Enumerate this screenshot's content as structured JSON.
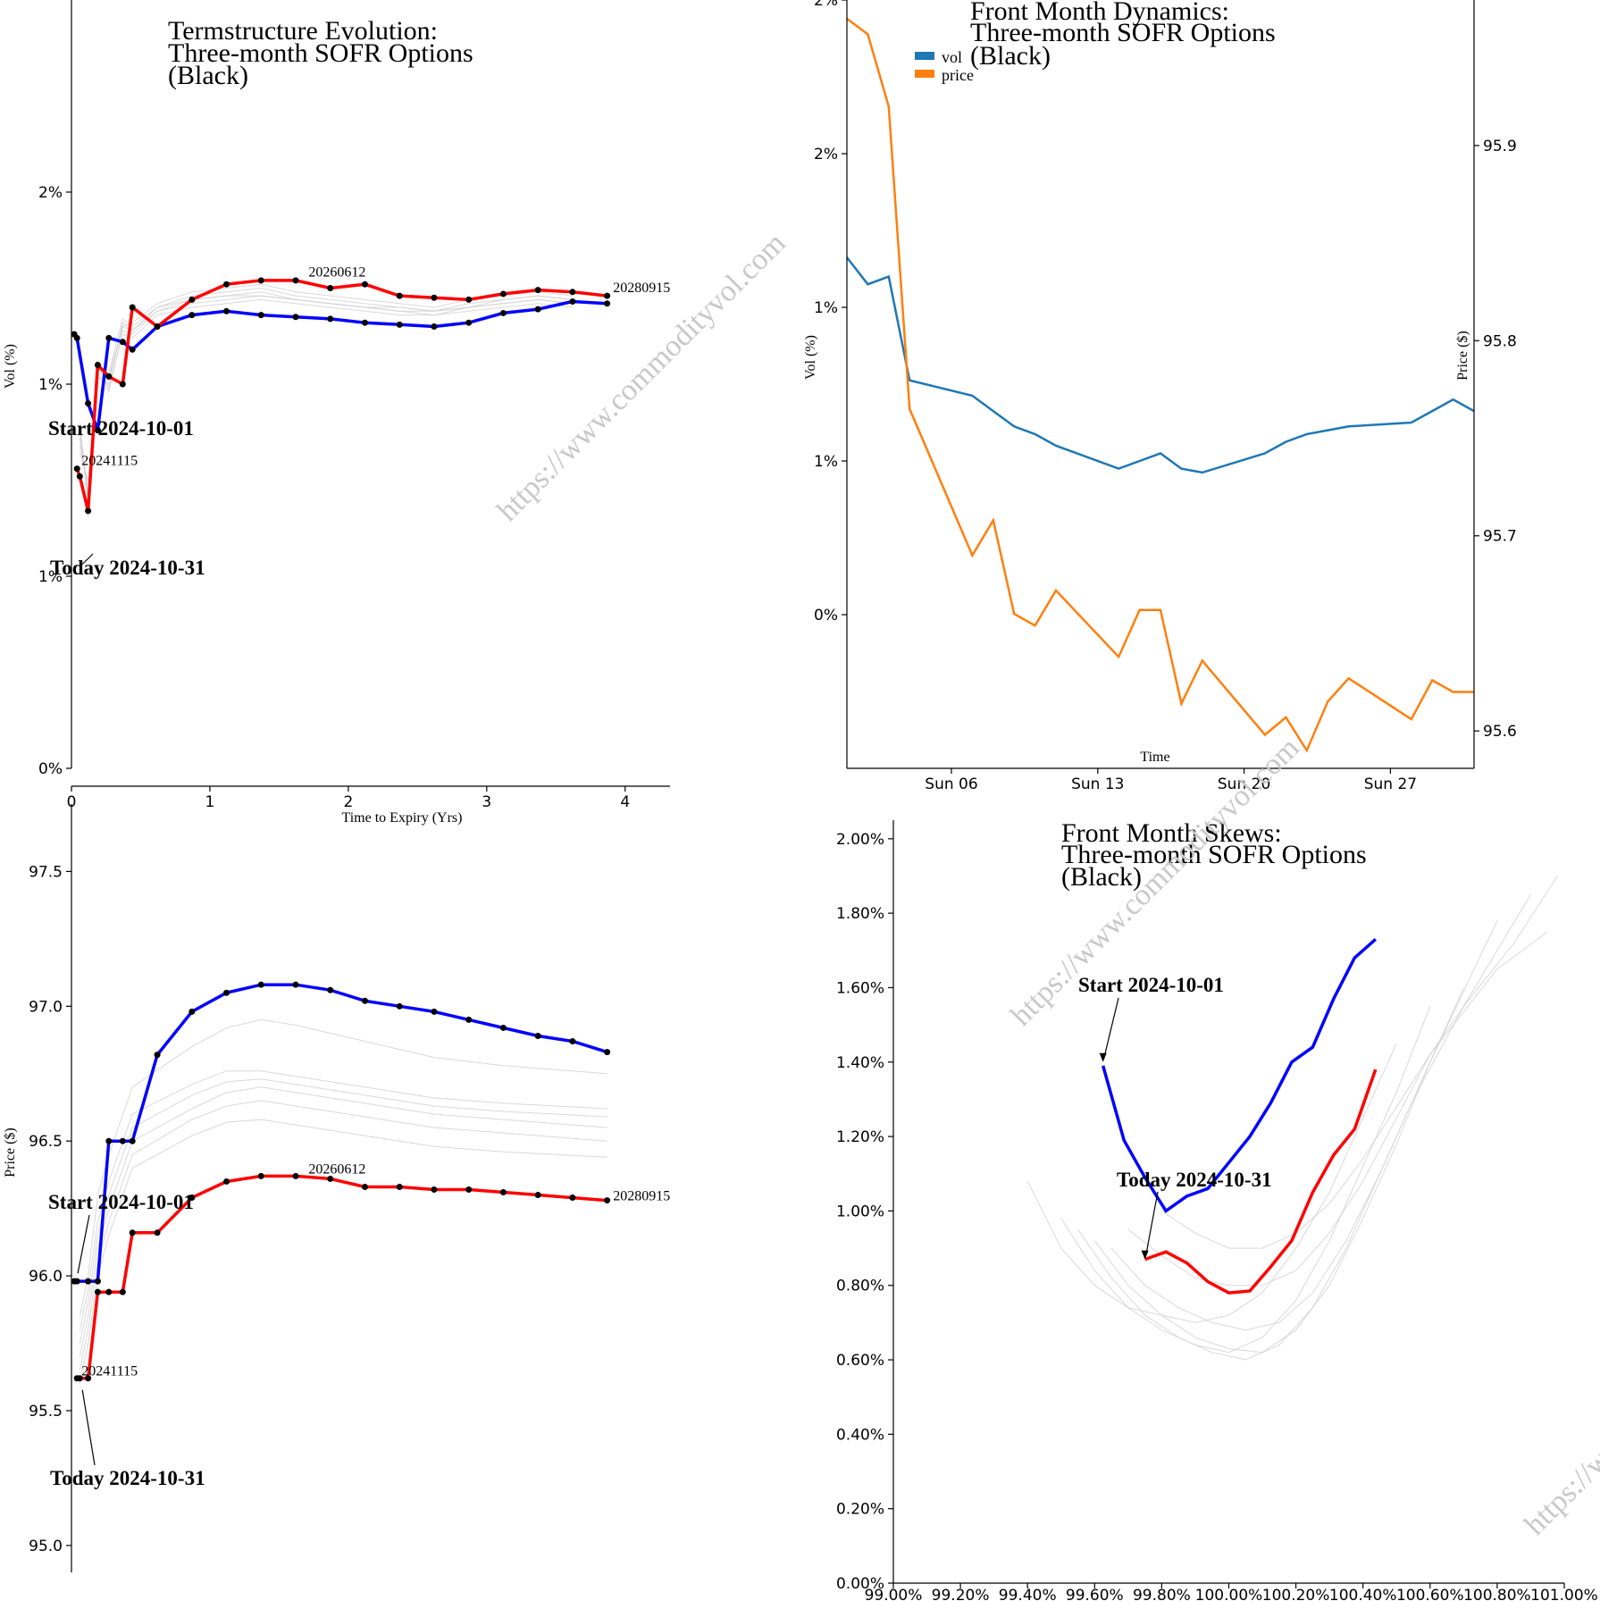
{
  "colors": {
    "blue": "#0000ff",
    "red": "#ff0000",
    "grey": "#cccccc",
    "vol": "#1f77b4",
    "price": "#ff7f0e"
  },
  "watermark": {
    "text": "https://www.commodityvol.com"
  },
  "chart_data": [
    {
      "id": "term-vol",
      "type": "line",
      "title": [
        "Termstructure Evolution:",
        "Three-month SOFR Options",
        "(Black)"
      ],
      "xlabel": "Time to Expiry (Yrs)",
      "ylabel": "Vol (%)",
      "xlim": [
        0,
        4.35
      ],
      "ylim": [
        0,
        2.0
      ],
      "xticks": [
        0,
        1,
        2,
        3,
        4
      ],
      "yticks": [
        {
          "value": 0,
          "label": "0%"
        },
        {
          "value": 0.5,
          "label": "1%"
        },
        {
          "value": 1.0,
          "label": "1%"
        },
        {
          "value": 1.5,
          "label": "2%"
        }
      ],
      "annotations": [
        {
          "text": "Start 2024-10-01",
          "x": 0.02,
          "y": 1.13
        },
        {
          "text": "Today 2024-10-31",
          "x": 0.04,
          "y": 0.55
        }
      ],
      "point_labels": [
        {
          "text": "20241115",
          "x": 0.06,
          "y": 0.79
        },
        {
          "text": "20260612",
          "x": 1.7,
          "y": 1.28
        },
        {
          "text": "20280915",
          "x": 3.9,
          "y": 1.24
        }
      ],
      "series": [
        {
          "name": "Start 2024-10-01",
          "color": "blue",
          "x": [
            0.02,
            0.04,
            0.12,
            0.19,
            0.27,
            0.37,
            0.44,
            0.62,
            0.87,
            1.12,
            1.37,
            1.62,
            1.87,
            2.12,
            2.37,
            2.62,
            2.87,
            3.12,
            3.37,
            3.62,
            3.87
          ],
          "y": [
            1.13,
            1.12,
            0.95,
            0.88,
            1.12,
            1.11,
            1.09,
            1.15,
            1.18,
            1.19,
            1.18,
            1.175,
            1.17,
            1.16,
            1.155,
            1.15,
            1.16,
            1.185,
            1.195,
            1.215,
            1.21
          ]
        },
        {
          "name": "Today 2024-10-31",
          "color": "red",
          "x": [
            0.04,
            0.06,
            0.12,
            0.19,
            0.27,
            0.37,
            0.44,
            0.62,
            0.87,
            1.12,
            1.37,
            1.62,
            1.87,
            2.12,
            2.37,
            2.62,
            2.87,
            3.12,
            3.37,
            3.62,
            3.87
          ],
          "y": [
            0.78,
            0.76,
            0.67,
            1.05,
            1.02,
            1.0,
            1.2,
            1.15,
            1.22,
            1.26,
            1.27,
            1.27,
            1.25,
            1.26,
            1.23,
            1.225,
            1.22,
            1.235,
            1.245,
            1.24,
            1.23
          ]
        }
      ],
      "grey_series": [
        [
          0.86,
          0.72,
          1.02,
          1.0,
          1.16,
          1.14,
          1.2,
          1.23,
          1.24,
          1.25,
          1.23,
          1.22,
          1.21,
          1.2,
          1.19,
          1.21,
          1.22,
          1.23,
          1.22
        ],
        [
          0.9,
          0.7,
          1.05,
          0.98,
          1.14,
          1.13,
          1.19,
          1.21,
          1.22,
          1.23,
          1.22,
          1.21,
          1.2,
          1.19,
          1.18,
          1.2,
          1.21,
          1.22,
          1.21
        ],
        [
          0.84,
          0.74,
          1.0,
          1.02,
          1.15,
          1.16,
          1.21,
          1.24,
          1.25,
          1.26,
          1.24,
          1.23,
          1.22,
          1.21,
          1.2,
          1.22,
          1.23,
          1.24,
          1.23
        ],
        [
          0.88,
          0.69,
          1.06,
          0.99,
          1.13,
          1.12,
          1.18,
          1.2,
          1.21,
          1.22,
          1.21,
          1.2,
          1.19,
          1.18,
          1.18,
          1.19,
          1.2,
          1.21,
          1.2
        ],
        [
          0.82,
          0.75,
          1.01,
          1.03,
          1.17,
          1.15,
          1.2,
          1.22,
          1.23,
          1.24,
          1.22,
          1.21,
          1.2,
          1.19,
          1.19,
          1.2,
          1.22,
          1.23,
          1.22
        ],
        [
          0.87,
          0.71,
          1.04,
          1.01,
          1.15,
          1.14,
          1.19,
          1.22,
          1.23,
          1.23,
          1.22,
          1.21,
          1.2,
          1.2,
          1.19,
          1.2,
          1.21,
          1.22,
          1.21
        ]
      ],
      "grey_x": [
        0.06,
        0.12,
        0.19,
        0.27,
        0.37,
        0.44,
        0.62,
        0.87,
        1.12,
        1.37,
        1.62,
        1.87,
        2.12,
        2.37,
        2.62,
        2.87,
        3.12,
        3.37,
        3.62
      ]
    },
    {
      "id": "front-month",
      "type": "line",
      "title": [
        "Front Month Dynamics:",
        "Three-month SOFR Options",
        "(Black)"
      ],
      "xlabel": "Time",
      "ylabel": "Vol (%)",
      "ylabel_right": "Price ($)",
      "legend": [
        "vol",
        "price"
      ],
      "legend_position": "top-left",
      "x_days": [
        1,
        43
      ],
      "xticks": [
        {
          "day": 6,
          "label": "Sun 06"
        },
        {
          "day": 13,
          "label": "Sun 13"
        },
        {
          "day": 20,
          "label": "Sun 20"
        },
        {
          "day": 27,
          "label": "Sun 27"
        }
      ],
      "ylim": [
        0.0,
        2.0
      ],
      "yticks": [
        {
          "value": 0.4,
          "label": "0%"
        },
        {
          "value": 0.8,
          "label": "1%"
        },
        {
          "value": 1.2,
          "label": "1%"
        },
        {
          "value": 1.6,
          "label": "2%"
        },
        {
          "value": 2.0,
          "label": "2%"
        }
      ],
      "ylim_right": [
        95.59,
        95.97
      ],
      "yticks_right": [
        95.6,
        95.7,
        95.8,
        95.9
      ],
      "series": [
        {
          "name": "vol",
          "color": "vol",
          "x": [
            1,
            2,
            3,
            4,
            7,
            8,
            9,
            10,
            11,
            14,
            15,
            16,
            17,
            18,
            21,
            22,
            23,
            24,
            25,
            28,
            29,
            30,
            31
          ],
          "y": [
            1.33,
            1.26,
            1.28,
            1.01,
            0.97,
            0.93,
            0.89,
            0.87,
            0.84,
            0.78,
            0.8,
            0.82,
            0.78,
            0.77,
            0.82,
            0.85,
            0.87,
            0.88,
            0.89,
            0.9,
            0.93,
            0.96,
            0.93
          ]
        },
        {
          "name": "price",
          "color": "price",
          "x": [
            1,
            2,
            3,
            4,
            7,
            8,
            9,
            10,
            11,
            14,
            15,
            16,
            17,
            18,
            21,
            22,
            23,
            24,
            25,
            28,
            29,
            30,
            31
          ],
          "y": [
            95.965,
            95.957,
            95.92,
            95.765,
            95.69,
            95.708,
            95.66,
            95.654,
            95.672,
            95.638,
            95.662,
            95.662,
            95.614,
            95.636,
            95.598,
            95.607,
            95.59,
            95.615,
            95.627,
            95.606,
            95.626,
            95.62,
            95.62
          ]
        }
      ]
    },
    {
      "id": "term-price",
      "type": "line",
      "title": [],
      "xlabel": "",
      "ylabel": "Price ($)",
      "xlim": [
        0,
        4.35
      ],
      "ylim": [
        94.9,
        97.75
      ],
      "yticks": [
        95.0,
        95.5,
        96.0,
        96.5,
        97.0,
        97.5
      ],
      "annotations": [
        {
          "text": "Start 2024-10-01",
          "x": 0.02,
          "y": 95.99
        },
        {
          "text": "Today 2024-10-31",
          "x": 0.04,
          "y": 95.61
        }
      ],
      "point_labels": [
        {
          "text": "20241115",
          "x": 0.06,
          "y": 95.63
        },
        {
          "text": "20260612",
          "x": 1.7,
          "y": 96.38
        },
        {
          "text": "20280915",
          "x": 3.9,
          "y": 96.28
        }
      ],
      "series": [
        {
          "name": "Start 2024-10-01",
          "color": "blue",
          "x": [
            0.02,
            0.04,
            0.12,
            0.19,
            0.27,
            0.37,
            0.44,
            0.62,
            0.87,
            1.12,
            1.37,
            1.62,
            1.87,
            2.12,
            2.37,
            2.62,
            2.87,
            3.12,
            3.37,
            3.62,
            3.87
          ],
          "y": [
            95.98,
            95.98,
            95.98,
            95.98,
            96.5,
            96.5,
            96.5,
            96.82,
            96.98,
            97.05,
            97.08,
            97.08,
            97.06,
            97.02,
            97.0,
            96.98,
            96.95,
            96.92,
            96.89,
            96.87,
            96.83
          ]
        },
        {
          "name": "Today 2024-10-31",
          "color": "red",
          "x": [
            0.04,
            0.06,
            0.12,
            0.19,
            0.27,
            0.37,
            0.44,
            0.62,
            0.87,
            1.12,
            1.37,
            1.62,
            1.87,
            2.12,
            2.37,
            2.62,
            2.87,
            3.12,
            3.37,
            3.62,
            3.87
          ],
          "y": [
            95.62,
            95.62,
            95.62,
            95.94,
            95.94,
            95.94,
            96.16,
            96.16,
            96.29,
            96.35,
            96.37,
            96.37,
            96.36,
            96.33,
            96.33,
            96.32,
            96.32,
            96.31,
            96.3,
            96.29,
            96.28
          ]
        }
      ],
      "grey_series": [
        [
          95.7,
          95.85,
          96.1,
          96.25,
          96.5,
          96.62,
          96.68,
          96.7,
          96.68,
          96.66,
          96.64,
          96.62,
          96.6,
          96.58,
          96.55
        ],
        [
          95.75,
          95.9,
          96.15,
          96.3,
          96.55,
          96.67,
          96.72,
          96.73,
          96.71,
          96.69,
          96.67,
          96.65,
          96.63,
          96.61,
          96.59
        ],
        [
          95.65,
          95.8,
          96.05,
          96.2,
          96.45,
          96.58,
          96.63,
          96.65,
          96.63,
          96.61,
          96.59,
          96.57,
          96.55,
          96.53,
          96.5
        ],
        [
          95.8,
          95.95,
          96.2,
          96.35,
          96.6,
          96.71,
          96.76,
          96.76,
          96.74,
          96.72,
          96.7,
          96.68,
          96.66,
          96.64,
          96.62
        ],
        [
          95.6,
          95.75,
          96.0,
          96.15,
          96.4,
          96.52,
          96.57,
          96.58,
          96.56,
          96.54,
          96.52,
          96.5,
          96.48,
          96.46,
          96.44
        ],
        [
          95.85,
          96.0,
          96.3,
          96.45,
          96.7,
          96.85,
          96.92,
          96.95,
          96.93,
          96.9,
          96.87,
          96.84,
          96.81,
          96.78,
          96.75
        ]
      ],
      "grey_x": [
        0.06,
        0.12,
        0.19,
        0.27,
        0.44,
        0.87,
        1.12,
        1.37,
        1.62,
        1.87,
        2.12,
        2.37,
        2.62,
        3.12,
        3.87
      ]
    },
    {
      "id": "skews",
      "type": "line",
      "title": [
        "Front Month Skews:",
        "Three-month SOFR Options",
        "(Black)"
      ],
      "xlim": [
        99.0,
        101.0
      ],
      "xticks": [
        99.0,
        99.2,
        99.4,
        99.6,
        99.8,
        100.0,
        100.2,
        100.4,
        100.6,
        100.8,
        101.0
      ],
      "ylim": [
        0.0,
        2.05
      ],
      "yticks": [
        0.0,
        0.2,
        0.4,
        0.6,
        0.8,
        1.0,
        1.2,
        1.4,
        1.6,
        1.8,
        2.0
      ],
      "annotations": [
        {
          "text": "Start 2024-10-01",
          "x": 99.625,
          "y": 1.4
        },
        {
          "text": "Today 2024-10-31",
          "x": 99.75,
          "y": 0.87
        }
      ],
      "series": [
        {
          "name": "Start 2024-10-01",
          "color": "blue",
          "x": [
            99.625,
            99.6875,
            99.75,
            99.8125,
            99.875,
            99.9375,
            100.0,
            100.0625,
            100.125,
            100.1875,
            100.25,
            100.3125,
            100.375,
            100.4375
          ],
          "y": [
            1.39,
            1.19,
            1.09,
            1.0,
            1.04,
            1.06,
            1.13,
            1.2,
            1.29,
            1.4,
            1.44,
            1.57,
            1.68,
            1.73
          ]
        },
        {
          "name": "Today 2024-10-31",
          "color": "red",
          "x": [
            99.75,
            99.8125,
            99.875,
            99.9375,
            100.0,
            100.0625,
            100.125,
            100.1875,
            100.25,
            100.3125,
            100.375,
            100.4375
          ],
          "y": [
            0.87,
            0.89,
            0.86,
            0.81,
            0.78,
            0.785,
            0.85,
            0.92,
            1.05,
            1.15,
            1.22,
            1.38
          ]
        }
      ],
      "grey_series": [
        {
          "x": [
            99.4,
            99.5,
            99.6,
            99.7,
            99.8,
            99.9,
            100.0,
            100.1,
            100.2,
            100.3,
            100.4,
            100.5
          ],
          "y": [
            1.08,
            0.9,
            0.8,
            0.74,
            0.72,
            0.7,
            0.72,
            0.78,
            0.9,
            1.05,
            1.25,
            1.45
          ]
        },
        {
          "x": [
            99.5,
            99.6,
            99.7,
            99.8,
            99.9,
            100.0,
            100.1,
            100.2,
            100.3,
            100.4,
            100.5,
            100.6
          ],
          "y": [
            0.98,
            0.84,
            0.74,
            0.68,
            0.64,
            0.62,
            0.66,
            0.76,
            0.92,
            1.12,
            1.32,
            1.55
          ]
        },
        {
          "x": [
            99.55,
            99.65,
            99.75,
            99.85,
            99.95,
            100.05,
            100.15,
            100.25,
            100.35,
            100.45,
            100.55,
            100.7
          ],
          "y": [
            0.95,
            0.82,
            0.72,
            0.66,
            0.62,
            0.6,
            0.64,
            0.74,
            0.9,
            1.1,
            1.3,
            1.6
          ]
        },
        {
          "x": [
            99.6,
            99.7,
            99.8,
            99.9,
            100.0,
            100.1,
            100.2,
            100.3,
            100.4,
            100.5,
            100.6,
            100.8
          ],
          "y": [
            0.92,
            0.8,
            0.72,
            0.66,
            0.63,
            0.62,
            0.68,
            0.8,
            0.98,
            1.18,
            1.4,
            1.78
          ]
        },
        {
          "x": [
            99.65,
            99.75,
            99.85,
            99.95,
            100.05,
            100.15,
            100.25,
            100.35,
            100.45,
            100.55,
            100.7,
            100.9
          ],
          "y": [
            0.9,
            0.8,
            0.74,
            0.7,
            0.68,
            0.7,
            0.78,
            0.92,
            1.1,
            1.3,
            1.55,
            1.85
          ]
        },
        {
          "x": [
            99.7,
            99.8,
            99.9,
            100.0,
            100.1,
            100.2,
            100.3,
            100.4,
            100.5,
            100.6,
            100.8,
            100.95
          ],
          "y": [
            0.95,
            0.88,
            0.82,
            0.8,
            0.8,
            0.84,
            0.94,
            1.08,
            1.25,
            1.42,
            1.65,
            1.75
          ]
        },
        {
          "x": [
            99.8,
            99.9,
            100.0,
            100.1,
            100.2,
            100.3,
            100.4,
            100.5,
            100.6,
            100.7,
            100.85,
            100.98
          ],
          "y": [
            1.0,
            0.94,
            0.9,
            0.9,
            0.94,
            1.02,
            1.14,
            1.28,
            1.42,
            1.55,
            1.72,
            1.9
          ]
        }
      ]
    }
  ]
}
